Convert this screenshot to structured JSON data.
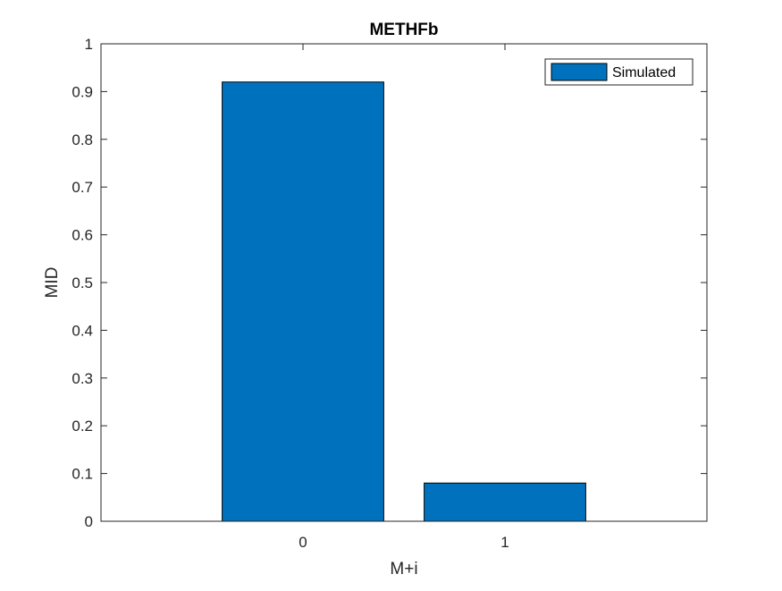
{
  "chart_data": {
    "type": "bar",
    "title": "METHFb",
    "xlabel": "M+i",
    "ylabel": "MID",
    "categories": [
      "0",
      "1"
    ],
    "series": [
      {
        "name": "Simulated",
        "values": [
          0.92,
          0.08
        ],
        "color": "#0072BD"
      }
    ],
    "xlim": [
      -1,
      2
    ],
    "ylim": [
      0,
      1
    ],
    "yticks": [
      "0",
      "0.1",
      "0.2",
      "0.3",
      "0.4",
      "0.5",
      "0.6",
      "0.7",
      "0.8",
      "0.9",
      "1"
    ],
    "xticks": [
      "0",
      "1"
    ],
    "grid": false,
    "legend_position": "top-right",
    "bar_edge_color": "#000000",
    "axis_color": "#262626"
  }
}
